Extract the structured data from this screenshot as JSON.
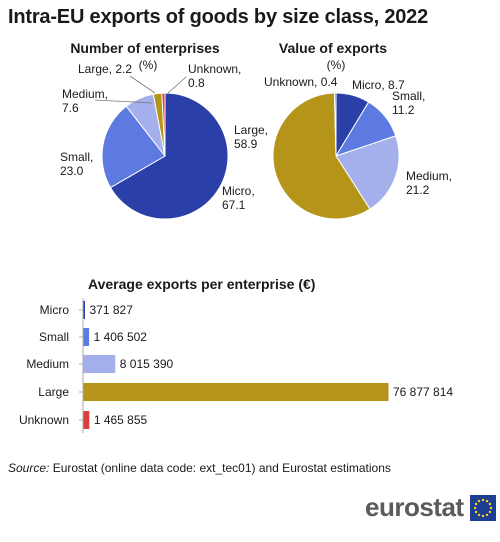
{
  "title": "Intra-EU exports of goods by size class, 2022",
  "colors": {
    "micro_dark": "#2a3fa8",
    "micro": "#1f3aa3",
    "small": "#5c7ae0",
    "medium": "#a4b0ec",
    "large": "#b5941a",
    "unknown": "#dc3c3c"
  },
  "source": {
    "label": "Source:",
    "text": "Eurostat (online data code: ext_tec01) and Eurostat estimations"
  },
  "logo": {
    "text": "eurostat",
    "flag_icon": "eu-flag-icon"
  },
  "chart_data": [
    {
      "type": "pie",
      "title": "Number of enterprises",
      "unit": "(%)",
      "slices": [
        {
          "label": "Micro",
          "value": 67.1,
          "color": "#2a3fa8",
          "display": "67.1"
        },
        {
          "label": "Small",
          "value": 23.0,
          "color": "#5c7ae0",
          "display": "23.0"
        },
        {
          "label": "Medium",
          "value": 7.6,
          "color": "#a4b0ec",
          "display": "7.6"
        },
        {
          "label": "Large",
          "value": 2.2,
          "color": "#b5941a",
          "display": "2.2"
        },
        {
          "label": "Unknown",
          "value": 0.8,
          "color": "#dc3c3c",
          "display": "0.8"
        }
      ]
    },
    {
      "type": "pie",
      "title": "Value of exports",
      "unit": "(%)",
      "slices": [
        {
          "label": "Micro",
          "value": 8.7,
          "color": "#2a3fa8",
          "display": "8.7"
        },
        {
          "label": "Small",
          "value": 11.2,
          "color": "#5c7ae0",
          "display": "11.2"
        },
        {
          "label": "Medium",
          "value": 21.2,
          "color": "#a4b0ec",
          "display": "21.2"
        },
        {
          "label": "Large",
          "value": 58.9,
          "color": "#b5941a",
          "display": "58.9"
        },
        {
          "label": "Unknown",
          "value": 0.4,
          "color": "#dc3c3c",
          "display": "0.4"
        }
      ]
    },
    {
      "type": "bar",
      "orientation": "horizontal",
      "title": "Average exports per enterprise (€)",
      "categories": [
        "Micro",
        "Small",
        "Medium",
        "Large",
        "Unknown"
      ],
      "values": [
        371827,
        1406502,
        8015390,
        76877814,
        1465855
      ],
      "value_labels": [
        "371 827",
        "1 406 502",
        "8 015 390",
        "76 877 814",
        "1 465 855"
      ],
      "colors": [
        "#2a3fa8",
        "#5c7ae0",
        "#a4b0ec",
        "#b5941a",
        "#dc3c3c"
      ]
    }
  ]
}
